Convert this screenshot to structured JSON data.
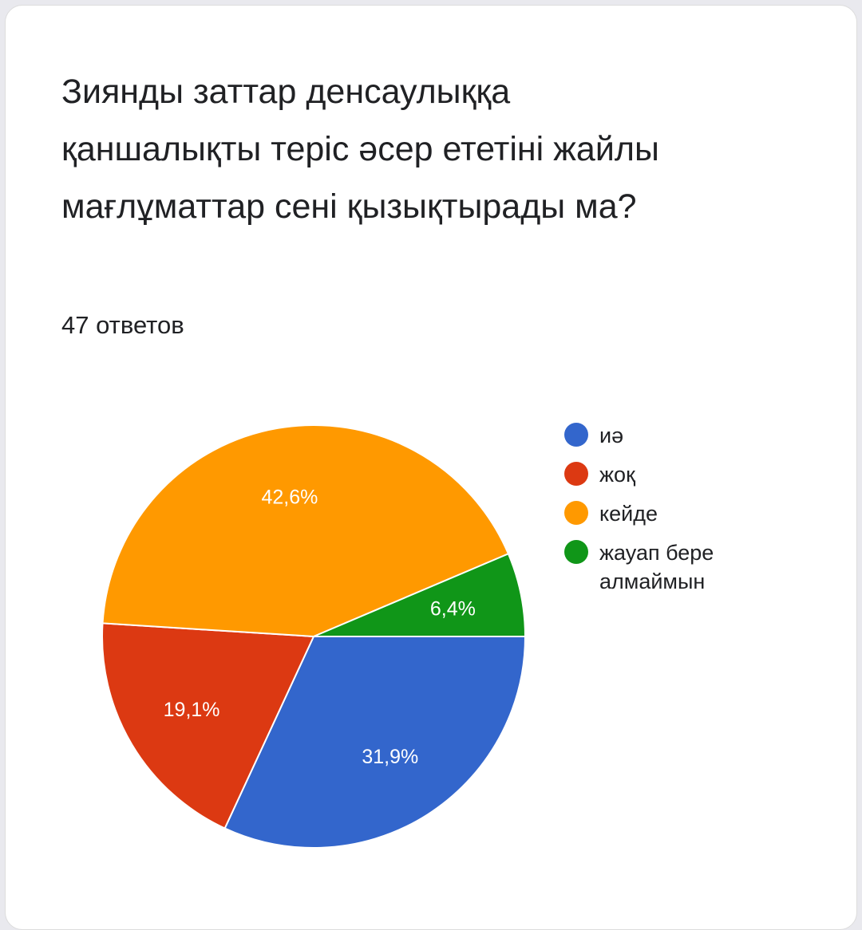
{
  "question": {
    "title": "Зиянды заттар денсаулыққа қаншалықты теріс әсер ететіні жайлы мағлұматтар сені қызықтырады ма?",
    "responses": "47 ответов"
  },
  "chart_data": {
    "type": "pie",
    "title": "",
    "legend_position": "right",
    "start_angle_deg": 90,
    "direction": "clockwise",
    "slices": [
      {
        "label": "иә",
        "value": 31.9,
        "display": "31,9%",
        "color": "#3366cc"
      },
      {
        "label": "жоқ",
        "value": 19.1,
        "display": "19,1%",
        "color": "#dc3912"
      },
      {
        "label": "кейде",
        "value": 42.6,
        "display": "42,6%",
        "color": "#ff9900"
      },
      {
        "label": "жауап бере алмаймын",
        "value": 6.4,
        "display": "6,4%",
        "color": "#109618"
      }
    ]
  }
}
